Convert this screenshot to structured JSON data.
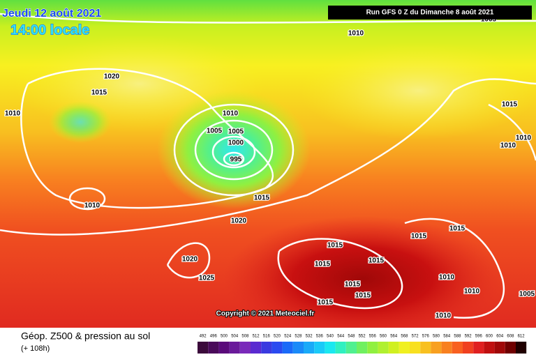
{
  "header": {
    "date": "Jeudi 12 août 2021",
    "time": "14:00 locale",
    "run": "Run GFS 0 Z du Dimanche 8 août 2021"
  },
  "map": {
    "copyright": "Copyright © 2021 Meteociel.fr",
    "isobar_labels": [
      "1010",
      "1020",
      "1015",
      "1010",
      "1010",
      "1005",
      "1005",
      "1000",
      "995",
      "1015",
      "1010",
      "1010",
      "1010",
      "1015",
      "1020",
      "1020",
      "1025",
      "1015",
      "1015",
      "1015",
      "1015",
      "1015",
      "1015",
      "1015",
      "1015",
      "1010",
      "1010",
      "1005",
      "1010",
      "1005"
    ]
  },
  "legend": {
    "title": "Géop. Z500 & pression au sol",
    "subtitle": "(+ 108h)",
    "scale": [
      492,
      496,
      500,
      504,
      508,
      512,
      516,
      520,
      524,
      528,
      532,
      536,
      540,
      544,
      548,
      552,
      556,
      560,
      564,
      568,
      572,
      576,
      580,
      584,
      588,
      592,
      596,
      600,
      604,
      608,
      612
    ],
    "colors": [
      "#3b0a3b",
      "#4a0a5a",
      "#5a0a7a",
      "#6a1a9a",
      "#7a2aba",
      "#5a2ad0",
      "#3a3ae0",
      "#2a4af0",
      "#1a6af8",
      "#1a8af8",
      "#1aaaf8",
      "#1acaf8",
      "#1ae8f0",
      "#30f0c0",
      "#50f090",
      "#70f060",
      "#90f040",
      "#b0f030",
      "#d0f020",
      "#f0f020",
      "#f8e020",
      "#f8c020",
      "#f8a020",
      "#f88020",
      "#f86020",
      "#f04020",
      "#e02020",
      "#c01010",
      "#a00808",
      "#700000",
      "#200000"
    ]
  }
}
